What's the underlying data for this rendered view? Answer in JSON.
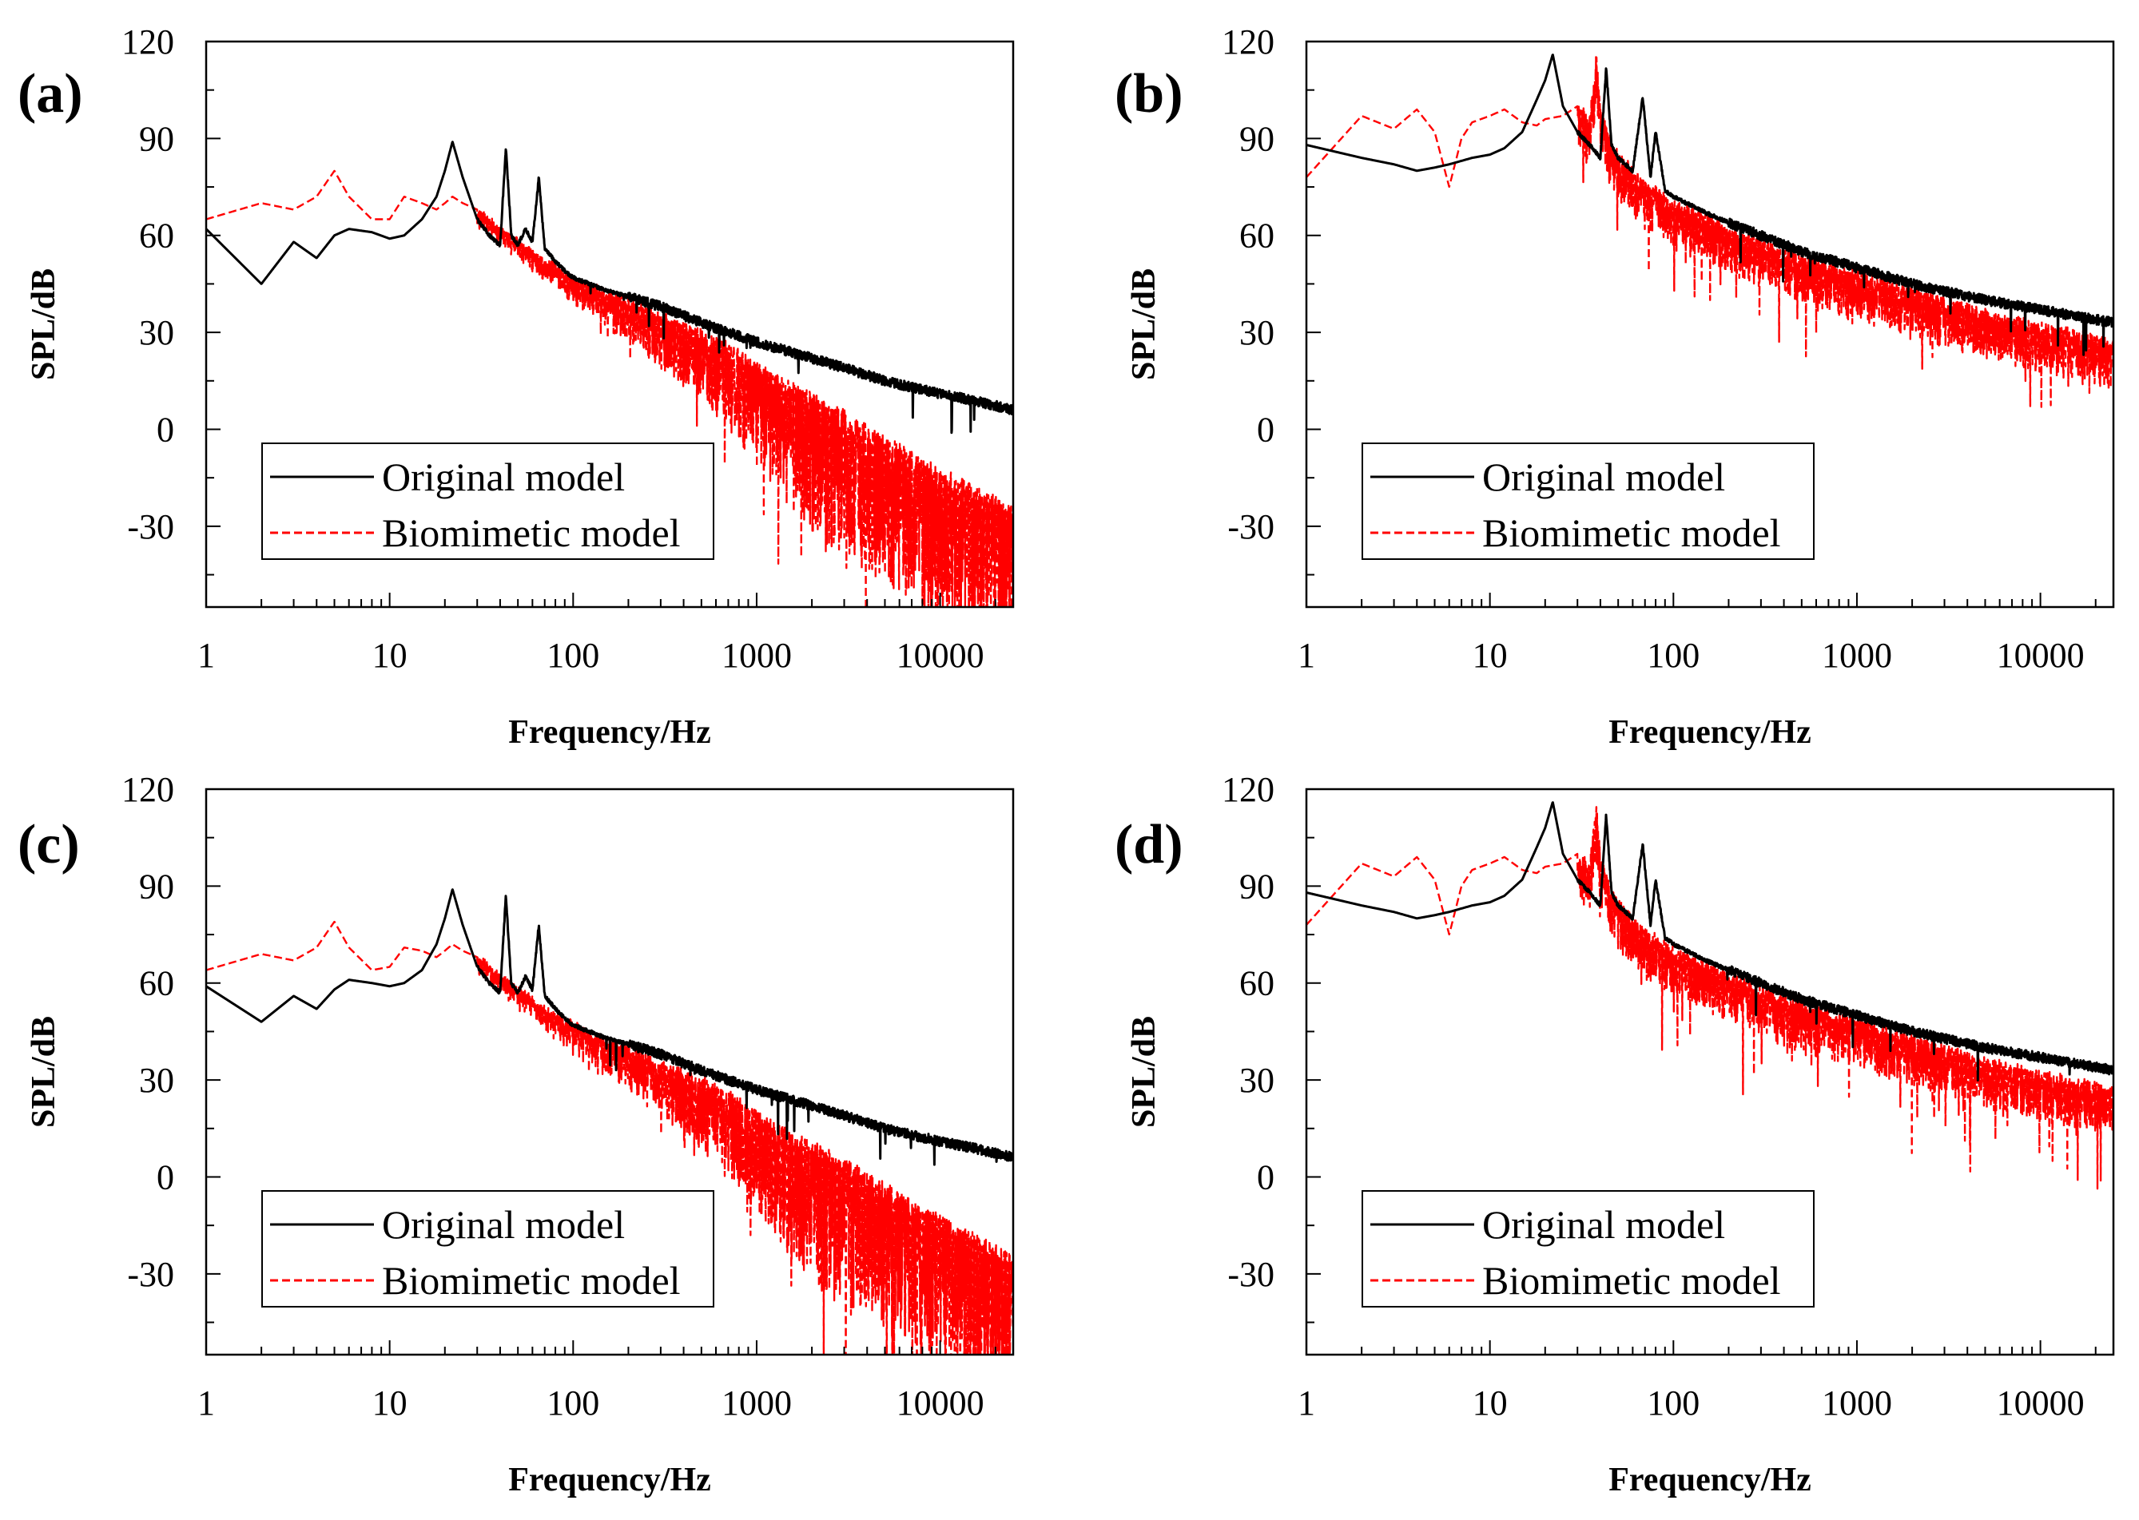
{
  "figure": {
    "description_free": true
  },
  "chart_data": [
    {
      "type": "line",
      "panel_label": "(a)",
      "xlabel": "Frequency/Hz",
      "ylabel": "SPL/dB",
      "xscale": "log",
      "xlim": [
        1,
        25000
      ],
      "ylim": [
        -55,
        120
      ],
      "xticks": [
        1,
        10,
        100,
        1000,
        10000
      ],
      "xtick_labels": [
        "1",
        "10",
        "100",
        "1000",
        "10000"
      ],
      "yticks": [
        120,
        90,
        60,
        30,
        0,
        -30
      ],
      "ytick_labels": [
        "120",
        "90",
        "60",
        "30",
        "0",
        "-30"
      ],
      "legend": {
        "position": "bottom-left",
        "entries": [
          "Original model",
          "Biomimetic model"
        ]
      },
      "series": [
        {
          "name": "Original model",
          "color": "#000000",
          "style": "solid",
          "x": [
            1,
            2,
            3,
            4,
            5,
            6,
            8,
            10,
            12,
            15,
            18,
            20,
            22,
            25,
            30,
            35,
            40,
            43,
            46,
            50,
            55,
            60,
            65,
            70,
            80,
            90,
            100,
            150,
            200,
            300,
            500,
            700,
            1000,
            2000,
            3000,
            5000,
            7000,
            10000,
            15000,
            25000
          ],
          "y": [
            62,
            45,
            58,
            53,
            60,
            62,
            61,
            59,
            60,
            65,
            72,
            80,
            89,
            78,
            65,
            60,
            57,
            87,
            60,
            57,
            62,
            58,
            78,
            56,
            52,
            49,
            47,
            43,
            41,
            38,
            33,
            30,
            27,
            22,
            19,
            15,
            13,
            11,
            9,
            6
          ]
        },
        {
          "name": "Biomimetic model",
          "color": "#ff0000",
          "style": "dashed",
          "x": [
            1,
            2,
            3,
            4,
            5,
            6,
            8,
            10,
            12,
            15,
            18,
            20,
            22,
            25,
            30,
            40,
            50,
            70,
            100,
            150,
            200,
            300,
            500,
            700,
            1000,
            2000,
            3000,
            5000,
            7000,
            10000,
            15000,
            25000
          ],
          "y": [
            65,
            70,
            68,
            72,
            80,
            72,
            65,
            65,
            72,
            70,
            68,
            70,
            72,
            70,
            68,
            62,
            58,
            52,
            47,
            42,
            40,
            35,
            30,
            26,
            20,
            10,
            5,
            -3,
            -8,
            -13,
            -18,
            -25
          ],
          "noise": "heavy"
        }
      ]
    },
    {
      "type": "line",
      "panel_label": "(b)",
      "xlabel": "Frequency/Hz",
      "ylabel": "SPL/dB",
      "xscale": "log",
      "xlim": [
        1,
        25000
      ],
      "ylim": [
        -55,
        120
      ],
      "xticks": [
        1,
        10,
        100,
        1000,
        10000
      ],
      "xtick_labels": [
        "1",
        "10",
        "100",
        "1000",
        "10000"
      ],
      "yticks": [
        120,
        90,
        60,
        30,
        0,
        -30
      ],
      "ytick_labels": [
        "120",
        "90",
        "60",
        "30",
        "0",
        "-30"
      ],
      "legend": {
        "position": "bottom-left",
        "entries": [
          "Original model",
          "Biomimetic model"
        ]
      },
      "series": [
        {
          "name": "Original model",
          "color": "#000000",
          "style": "solid",
          "x": [
            1,
            2,
            3,
            4,
            5,
            6,
            8,
            10,
            12,
            15,
            18,
            20,
            22,
            25,
            30,
            35,
            40,
            43,
            46,
            50,
            60,
            68,
            75,
            80,
            90,
            100,
            150,
            200,
            300,
            500,
            1000,
            2000,
            5000,
            10000,
            25000
          ],
          "y": [
            88,
            84,
            82,
            80,
            81,
            82,
            84,
            85,
            87,
            92,
            102,
            108,
            116,
            100,
            92,
            88,
            84,
            112,
            88,
            84,
            80,
            103,
            78,
            92,
            74,
            72,
            67,
            64,
            60,
            55,
            50,
            45,
            40,
            37,
            33
          ]
        },
        {
          "name": "Biomimetic model",
          "color": "#ff0000",
          "style": "dashed",
          "x": [
            1,
            2,
            3,
            4,
            5,
            6,
            7,
            8,
            10,
            12,
            15,
            18,
            20,
            25,
            30,
            35,
            38,
            40,
            45,
            50,
            60,
            70,
            80,
            100,
            150,
            200,
            300,
            500,
            1000,
            2000,
            5000,
            10000,
            25000
          ],
          "y": [
            78,
            97,
            93,
            99,
            92,
            75,
            90,
            95,
            97,
            99,
            95,
            94,
            96,
            97,
            100,
            96,
            115,
            98,
            90,
            85,
            80,
            76,
            74,
            70,
            66,
            62,
            58,
            53,
            48,
            43,
            36,
            32,
            27
          ],
          "noise": "moderate"
        }
      ]
    },
    {
      "type": "line",
      "panel_label": "(c)",
      "xlabel": "Frequency/Hz",
      "ylabel": "SPL/dB",
      "xscale": "log",
      "xlim": [
        1,
        25000
      ],
      "ylim": [
        -55,
        120
      ],
      "xticks": [
        1,
        10,
        100,
        1000,
        10000
      ],
      "xtick_labels": [
        "1",
        "10",
        "100",
        "1000",
        "10000"
      ],
      "yticks": [
        120,
        90,
        60,
        30,
        0,
        -30
      ],
      "ytick_labels": [
        "120",
        "90",
        "60",
        "30",
        "0",
        "-30"
      ],
      "legend": {
        "position": "bottom-left",
        "entries": [
          "Original model",
          "Biomimetic model"
        ]
      },
      "series": [
        {
          "name": "Original model",
          "color": "#000000",
          "style": "solid",
          "x": [
            1,
            2,
            3,
            4,
            5,
            6,
            8,
            10,
            12,
            15,
            18,
            20,
            22,
            25,
            30,
            35,
            40,
            43,
            46,
            50,
            55,
            60,
            65,
            70,
            80,
            90,
            100,
            150,
            200,
            300,
            500,
            700,
            1000,
            2000,
            3000,
            5000,
            7000,
            10000,
            15000,
            25000
          ],
          "y": [
            59,
            48,
            56,
            52,
            58,
            61,
            60,
            59,
            60,
            64,
            72,
            80,
            89,
            78,
            65,
            60,
            57,
            87,
            60,
            57,
            62,
            58,
            78,
            56,
            52,
            49,
            47,
            43,
            41,
            38,
            33,
            30,
            27,
            22,
            19,
            15,
            13,
            11,
            9,
            6
          ]
        },
        {
          "name": "Biomimetic model",
          "color": "#ff0000",
          "style": "dashed",
          "x": [
            1,
            2,
            3,
            4,
            5,
            6,
            8,
            10,
            12,
            15,
            18,
            20,
            22,
            25,
            30,
            40,
            50,
            70,
            100,
            150,
            200,
            300,
            500,
            700,
            1000,
            2000,
            3000,
            5000,
            7000,
            10000,
            15000,
            25000
          ],
          "y": [
            64,
            69,
            67,
            71,
            79,
            71,
            64,
            65,
            71,
            70,
            68,
            70,
            72,
            70,
            68,
            62,
            58,
            52,
            47,
            42,
            40,
            35,
            30,
            26,
            20,
            10,
            5,
            -3,
            -8,
            -13,
            -18,
            -25
          ],
          "noise": "heavy"
        }
      ]
    },
    {
      "type": "line",
      "panel_label": "(d)",
      "xlabel": "Frequency/Hz",
      "ylabel": "SPL/dB",
      "xscale": "log",
      "xlim": [
        1,
        25000
      ],
      "ylim": [
        -55,
        120
      ],
      "xticks": [
        1,
        10,
        100,
        1000,
        10000
      ],
      "xtick_labels": [
        "1",
        "10",
        "100",
        "1000",
        "10000"
      ],
      "yticks": [
        120,
        90,
        60,
        30,
        0,
        -30
      ],
      "ytick_labels": [
        "120",
        "90",
        "60",
        "30",
        "0",
        "-30"
      ],
      "legend": {
        "position": "bottom-left",
        "entries": [
          "Original model",
          "Biomimetic model"
        ]
      },
      "series": [
        {
          "name": "Original model",
          "color": "#000000",
          "style": "solid",
          "x": [
            1,
            2,
            3,
            4,
            5,
            6,
            8,
            10,
            12,
            15,
            18,
            20,
            22,
            25,
            30,
            35,
            40,
            43,
            46,
            50,
            60,
            68,
            75,
            80,
            90,
            100,
            150,
            200,
            300,
            500,
            1000,
            2000,
            5000,
            10000,
            25000
          ],
          "y": [
            88,
            84,
            82,
            80,
            81,
            82,
            84,
            85,
            87,
            92,
            102,
            108,
            116,
            100,
            92,
            88,
            84,
            112,
            88,
            84,
            80,
            103,
            78,
            92,
            74,
            72,
            67,
            64,
            60,
            55,
            50,
            45,
            40,
            37,
            33
          ]
        },
        {
          "name": "Biomimetic model",
          "color": "#ff0000",
          "style": "dashed",
          "x": [
            1,
            2,
            3,
            4,
            5,
            6,
            7,
            8,
            10,
            12,
            15,
            18,
            20,
            25,
            30,
            35,
            38,
            40,
            45,
            50,
            60,
            70,
            80,
            100,
            150,
            200,
            300,
            500,
            1000,
            2000,
            5000,
            10000,
            25000
          ],
          "y": [
            78,
            97,
            93,
            99,
            92,
            75,
            90,
            95,
            97,
            99,
            95,
            94,
            96,
            97,
            100,
            96,
            115,
            98,
            90,
            85,
            80,
            76,
            74,
            70,
            66,
            62,
            58,
            53,
            48,
            43,
            36,
            32,
            27
          ],
          "noise": "moderate"
        }
      ]
    }
  ]
}
